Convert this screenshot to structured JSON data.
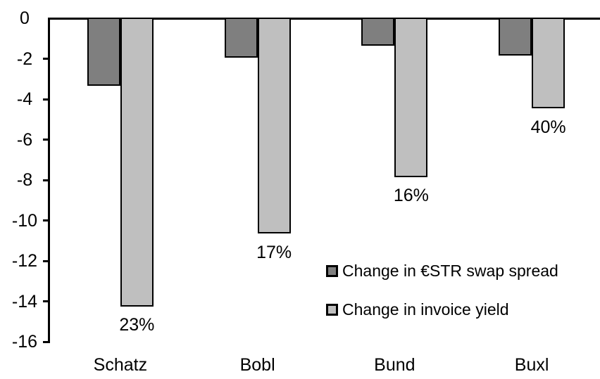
{
  "chart_data": {
    "type": "bar",
    "title": "",
    "xlabel": "",
    "ylabel": "",
    "categories": [
      "Schatz",
      "Bobl",
      "Bund",
      "Buxl"
    ],
    "series": [
      {
        "name": "Change in €STR swap spread",
        "color": "#7F7F7F",
        "values": [
          -3.3,
          -1.9,
          -1.3,
          -1.8
        ]
      },
      {
        "name": "Change in invoice yield",
        "color": "#BFBFBF",
        "values": [
          -14.2,
          -10.6,
          -7.8,
          -4.4
        ],
        "data_labels": [
          "23%",
          "17%",
          "16%",
          "40%"
        ]
      }
    ],
    "ylim": [
      -16,
      0
    ],
    "yticks": [
      0,
      -2,
      -4,
      -6,
      -8,
      -10,
      -12,
      -14,
      -16
    ],
    "grid": false,
    "legend_position": "inside-right",
    "bar_border_color": "#000000",
    "axis_color": "#000000",
    "background_color": "#FFFFFF"
  }
}
